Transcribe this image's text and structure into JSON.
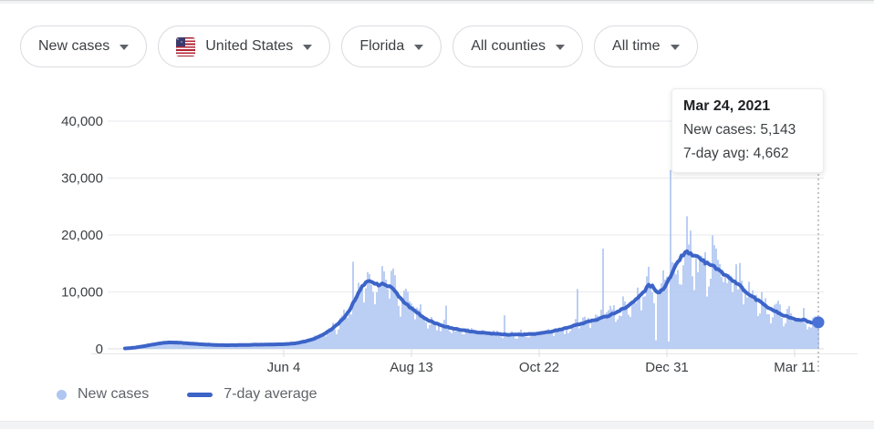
{
  "filters": [
    {
      "label": "New cases"
    },
    {
      "label": "United States",
      "flag": "us-flag"
    },
    {
      "label": "Florida"
    },
    {
      "label": "All counties"
    },
    {
      "label": "All time"
    }
  ],
  "tooltip": {
    "title": "Mar 24, 2021",
    "line1": "New cases: 5,143",
    "line2": "7-day avg: 4,662"
  },
  "legend": [
    {
      "label": "New cases",
      "swatch": "dot"
    },
    {
      "label": "7-day average",
      "swatch": "line"
    }
  ],
  "colors": {
    "bars": "#AFC6F1",
    "line": "#3C64C8",
    "dot": "#4A71D6",
    "grid": "#E8EAED",
    "baseline": "#DADCE0",
    "axis_line": "#E6E6E6",
    "tick": "#DADCE0",
    "axis_text": "#3C4043",
    "cursor": "#9AA0A6"
  },
  "chart_data": {
    "type": "bar",
    "title": "New cases in Florida, all time, with 7-day average line",
    "xlabel": "",
    "ylabel": "",
    "x_axis": {
      "domain_days": 380,
      "tick_days": [
        87,
        157,
        227,
        297,
        367
      ],
      "tick_labels": [
        "Jun 4",
        "Aug 13",
        "Oct 22",
        "Dec 31",
        "Mar 11"
      ]
    },
    "y_axis": {
      "max": 40000,
      "ticks": [
        0,
        10000,
        20000,
        30000,
        40000
      ],
      "tick_labels": [
        "0",
        "10,000",
        "20,000",
        "30,000",
        "40,000"
      ],
      "grid": true
    },
    "series": [
      {
        "name": "7-day average",
        "type": "line",
        "points": [
          [
            0,
            80
          ],
          [
            5,
            200
          ],
          [
            10,
            450
          ],
          [
            15,
            750
          ],
          [
            20,
            1000
          ],
          [
            24,
            1150
          ],
          [
            28,
            1120
          ],
          [
            33,
            1000
          ],
          [
            38,
            880
          ],
          [
            44,
            760
          ],
          [
            50,
            680
          ],
          [
            56,
            640
          ],
          [
            62,
            660
          ],
          [
            68,
            700
          ],
          [
            74,
            740
          ],
          [
            80,
            770
          ],
          [
            87,
            820
          ],
          [
            93,
            950
          ],
          [
            98,
            1250
          ],
          [
            103,
            1700
          ],
          [
            108,
            2400
          ],
          [
            113,
            3400
          ],
          [
            117,
            4400
          ],
          [
            121,
            5800
          ],
          [
            124,
            7300
          ],
          [
            127,
            9300
          ],
          [
            129,
            10500
          ],
          [
            131,
            11300
          ],
          [
            133,
            11800
          ],
          [
            136,
            11600
          ],
          [
            139,
            11200
          ],
          [
            141,
            11500
          ],
          [
            144,
            11100
          ],
          [
            147,
            10400
          ],
          [
            150,
            9200
          ],
          [
            154,
            7900
          ],
          [
            158,
            6900
          ],
          [
            162,
            5900
          ],
          [
            166,
            5100
          ],
          [
            170,
            4500
          ],
          [
            174,
            4050
          ],
          [
            178,
            3700
          ],
          [
            182,
            3450
          ],
          [
            186,
            3250
          ],
          [
            190,
            3050
          ],
          [
            195,
            2850
          ],
          [
            200,
            2700
          ],
          [
            205,
            2580
          ],
          [
            210,
            2500
          ],
          [
            214,
            2470
          ],
          [
            218,
            2520
          ],
          [
            222,
            2600
          ],
          [
            227,
            2680
          ],
          [
            231,
            2900
          ],
          [
            235,
            3150
          ],
          [
            239,
            3450
          ],
          [
            243,
            3800
          ],
          [
            247,
            4150
          ],
          [
            251,
            4500
          ],
          [
            255,
            4850
          ],
          [
            259,
            5200
          ],
          [
            263,
            5600
          ],
          [
            267,
            6100
          ],
          [
            271,
            6700
          ],
          [
            275,
            7400
          ],
          [
            279,
            8300
          ],
          [
            282,
            9200
          ],
          [
            285,
            10300
          ],
          [
            287,
            11200
          ],
          [
            289,
            11000
          ],
          [
            291,
            10100
          ],
          [
            293,
            10000
          ],
          [
            295,
            10600
          ],
          [
            297,
            11600
          ],
          [
            299,
            12800
          ],
          [
            301,
            14100
          ],
          [
            303,
            15300
          ],
          [
            305,
            16300
          ],
          [
            307,
            16800
          ],
          [
            309,
            16900
          ],
          [
            311,
            16600
          ],
          [
            313,
            16200
          ],
          [
            316,
            15600
          ],
          [
            319,
            15000
          ],
          [
            322,
            14500
          ],
          [
            325,
            13900
          ],
          [
            328,
            13200
          ],
          [
            331,
            12500
          ],
          [
            334,
            11800
          ],
          [
            337,
            11000
          ],
          [
            340,
            10200
          ],
          [
            343,
            9400
          ],
          [
            346,
            8700
          ],
          [
            349,
            8000
          ],
          [
            352,
            7400
          ],
          [
            355,
            6800
          ],
          [
            358,
            6300
          ],
          [
            361,
            5900
          ],
          [
            364,
            5500
          ],
          [
            367,
            5200
          ],
          [
            370,
            5000
          ],
          [
            372,
            5200
          ],
          [
            374,
            4800
          ],
          [
            376,
            4600
          ],
          [
            378,
            4500
          ],
          [
            380,
            4662
          ]
        ]
      },
      {
        "name": "New cases",
        "type": "bar",
        "generated": "daily bars approximated from 7-day average curve with weekly/random variation",
        "noise": {
          "seed": 11,
          "weekly_amp": 0.16,
          "random_amp": 0.5,
          "line_jitter": 0.018
        },
        "overrides": {
          "125": 15300,
          "176": 7600,
          "208": 5900,
          "248": 10500,
          "262": 17600,
          "291": 1500,
          "298": 1300,
          "299": 31400,
          "326": 14900,
          "359": 7800
        }
      }
    ],
    "highlight": {
      "day": 380,
      "date": "Mar 24, 2021",
      "new_cases": 5143,
      "seven_day_avg": 4662
    },
    "legend_position": "bottom-left"
  }
}
